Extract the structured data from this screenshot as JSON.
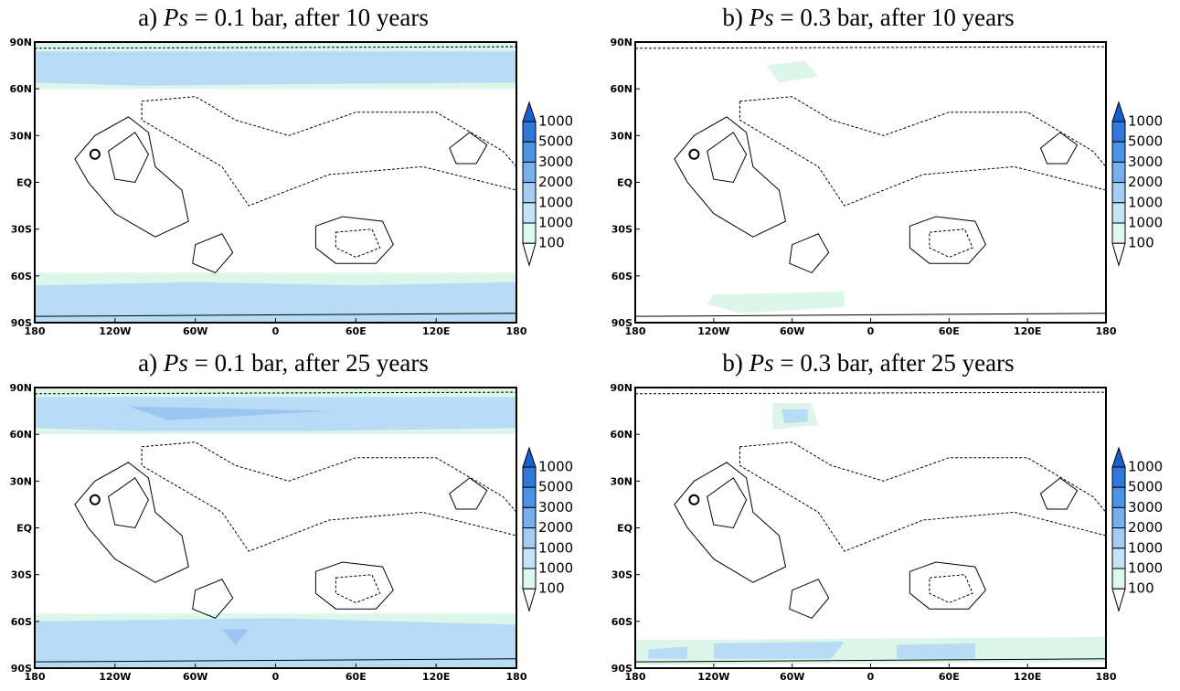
{
  "panels": [
    {
      "label": "a)",
      "symbol": "Ps",
      "expr": "= 0.1",
      "suffix": "bar, after 10 years"
    },
    {
      "label": "b)",
      "symbol": "Ps",
      "expr": "= 0.3",
      "suffix": "bar, after 10 years"
    },
    {
      "label": "a)",
      "symbol": "Ps",
      "expr": "= 0.1",
      "suffix": "bar, after 25 years"
    },
    {
      "label": "b)",
      "symbol": "Ps",
      "expr": "= 0.3",
      "suffix": "bar, after 25 years"
    }
  ],
  "x_ticks": [
    "180",
    "120W",
    "60W",
    "0",
    "60E",
    "120E",
    "180"
  ],
  "y_ticks": [
    "90N",
    "60N",
    "30N",
    "EQ",
    "30S",
    "60S",
    "90S"
  ],
  "colorbar_labels": [
    "1000",
    "5000",
    "3000",
    "2000",
    "1000",
    "1000",
    "100"
  ]
}
